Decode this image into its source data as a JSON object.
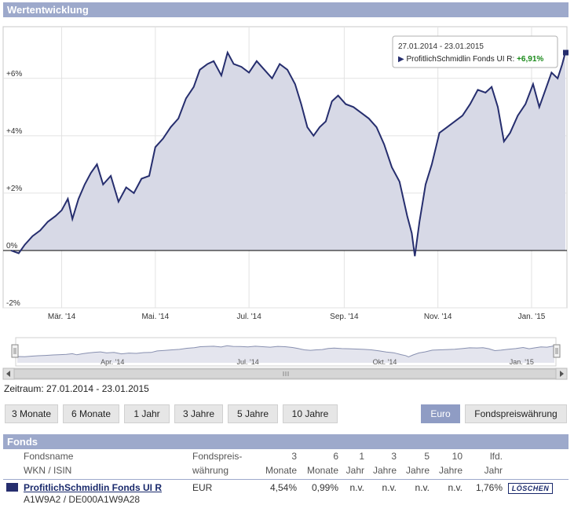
{
  "section_title": "Wertentwicklung",
  "tooltip": {
    "range": "27.01.2014 - 23.01.2015",
    "fund_label": "ProfitlichSchmidlin Fonds UI R:",
    "value": "+6,91%"
  },
  "chart_data": {
    "type": "area",
    "series": [
      {
        "values": [
          [
            "2014-01-27",
            0.0
          ],
          [
            "2014-02-01",
            -0.1
          ],
          [
            "2014-02-05",
            0.2
          ],
          [
            "2014-02-10",
            0.5
          ],
          [
            "2014-02-15",
            0.7
          ],
          [
            "2014-02-20",
            1.0
          ],
          [
            "2014-02-25",
            1.2
          ],
          [
            "2014-03-01",
            1.4
          ],
          [
            "2014-03-05",
            1.8
          ],
          [
            "2014-03-08",
            1.1
          ],
          [
            "2014-03-12",
            1.8
          ],
          [
            "2014-03-16",
            2.3
          ],
          [
            "2014-03-20",
            2.7
          ],
          [
            "2014-03-24",
            3.0
          ],
          [
            "2014-03-28",
            2.3
          ],
          [
            "2014-04-02",
            2.6
          ],
          [
            "2014-04-07",
            1.7
          ],
          [
            "2014-04-12",
            2.2
          ],
          [
            "2014-04-17",
            2.0
          ],
          [
            "2014-04-22",
            2.5
          ],
          [
            "2014-04-27",
            2.6
          ],
          [
            "2014-05-01",
            3.6
          ],
          [
            "2014-05-06",
            3.9
          ],
          [
            "2014-05-11",
            4.3
          ],
          [
            "2014-05-16",
            4.6
          ],
          [
            "2014-05-21",
            5.3
          ],
          [
            "2014-05-26",
            5.7
          ],
          [
            "2014-05-30",
            6.3
          ],
          [
            "2014-06-04",
            6.5
          ],
          [
            "2014-06-08",
            6.6
          ],
          [
            "2014-06-13",
            6.1
          ],
          [
            "2014-06-17",
            6.9
          ],
          [
            "2014-06-21",
            6.5
          ],
          [
            "2014-06-26",
            6.4
          ],
          [
            "2014-07-01",
            6.2
          ],
          [
            "2014-07-06",
            6.6
          ],
          [
            "2014-07-11",
            6.3
          ],
          [
            "2014-07-16",
            6.0
          ],
          [
            "2014-07-21",
            6.5
          ],
          [
            "2014-07-26",
            6.3
          ],
          [
            "2014-07-31",
            5.8
          ],
          [
            "2014-08-04",
            5.1
          ],
          [
            "2014-08-08",
            4.3
          ],
          [
            "2014-08-12",
            4.0
          ],
          [
            "2014-08-16",
            4.3
          ],
          [
            "2014-08-20",
            4.5
          ],
          [
            "2014-08-24",
            5.2
          ],
          [
            "2014-08-28",
            5.4
          ],
          [
            "2014-09-02",
            5.1
          ],
          [
            "2014-09-07",
            5.0
          ],
          [
            "2014-09-12",
            4.8
          ],
          [
            "2014-09-17",
            4.6
          ],
          [
            "2014-09-22",
            4.3
          ],
          [
            "2014-09-27",
            3.7
          ],
          [
            "2014-10-02",
            2.9
          ],
          [
            "2014-10-07",
            2.4
          ],
          [
            "2014-10-12",
            1.2
          ],
          [
            "2014-10-15",
            0.6
          ],
          [
            "2014-10-17",
            -0.2
          ],
          [
            "2014-10-20",
            1.0
          ],
          [
            "2014-10-24",
            2.3
          ],
          [
            "2014-10-28",
            3.0
          ],
          [
            "2014-11-02",
            4.1
          ],
          [
            "2014-11-07",
            4.3
          ],
          [
            "2014-11-12",
            4.5
          ],
          [
            "2014-11-17",
            4.7
          ],
          [
            "2014-11-22",
            5.1
          ],
          [
            "2014-11-27",
            5.6
          ],
          [
            "2014-12-02",
            5.5
          ],
          [
            "2014-12-06",
            5.7
          ],
          [
            "2014-12-10",
            5.0
          ],
          [
            "2014-12-14",
            3.8
          ],
          [
            "2014-12-18",
            4.1
          ],
          [
            "2014-12-23",
            4.7
          ],
          [
            "2014-12-28",
            5.1
          ],
          [
            "2015-01-02",
            5.8
          ],
          [
            "2015-01-06",
            5.0
          ],
          [
            "2015-01-10",
            5.6
          ],
          [
            "2015-01-14",
            6.2
          ],
          [
            "2015-01-18",
            6.0
          ],
          [
            "2015-01-21",
            6.5
          ],
          [
            "2015-01-23",
            6.91
          ]
        ]
      }
    ],
    "ylim": [
      -2,
      7.8
    ],
    "y_ticks": [
      "+6%",
      "+4%",
      "+2%",
      "0%",
      "-2%"
    ],
    "x_ticks": [
      "Mär. '14",
      "Mai. '14",
      "Jul. '14",
      "Sep. '14",
      "Nov. '14",
      "Jan. '15"
    ],
    "navigator_ticks": [
      "Apr. '14",
      "Jul. '14",
      "Okt. '14",
      "Jan. '15"
    ],
    "grid": true,
    "line_color": "#262e6e",
    "fill_color": "#d7d9e6"
  },
  "period_label": "Zeitraum: 27.01.2014 - 23.01.2015",
  "range_buttons": [
    "3 Monate",
    "6 Monate",
    "1 Jahr",
    "3 Jahre",
    "5 Jahre",
    "10 Jahre"
  ],
  "currency_buttons": [
    "Euro",
    "Fondspreiswährung"
  ],
  "fonds_section_title": "Fonds",
  "table": {
    "col_name_1": "Fondsname",
    "col_name_2": "WKN / ISIN",
    "col_cur_1": "Fondspreis-",
    "col_cur_2": "währung",
    "cols": [
      {
        "top": "3",
        "bottom": "Monate"
      },
      {
        "top": "6",
        "bottom": "Monate"
      },
      {
        "top": "1",
        "bottom": "Jahr"
      },
      {
        "top": "3",
        "bottom": "Jahre"
      },
      {
        "top": "5",
        "bottom": "Jahre"
      },
      {
        "top": "10",
        "bottom": "Jahre"
      },
      {
        "top": "lfd.",
        "bottom": "Jahr"
      }
    ],
    "row": {
      "name": "ProfitlichSchmidlin Fonds UI R",
      "ids": "A1W9A2 / DE000A1W9A28",
      "currency": "EUR",
      "values": [
        "4,54%",
        "0,99%",
        "n.v.",
        "n.v.",
        "n.v.",
        "n.v.",
        "1,76%"
      ],
      "delete_label": "LÖSCHEN"
    }
  }
}
